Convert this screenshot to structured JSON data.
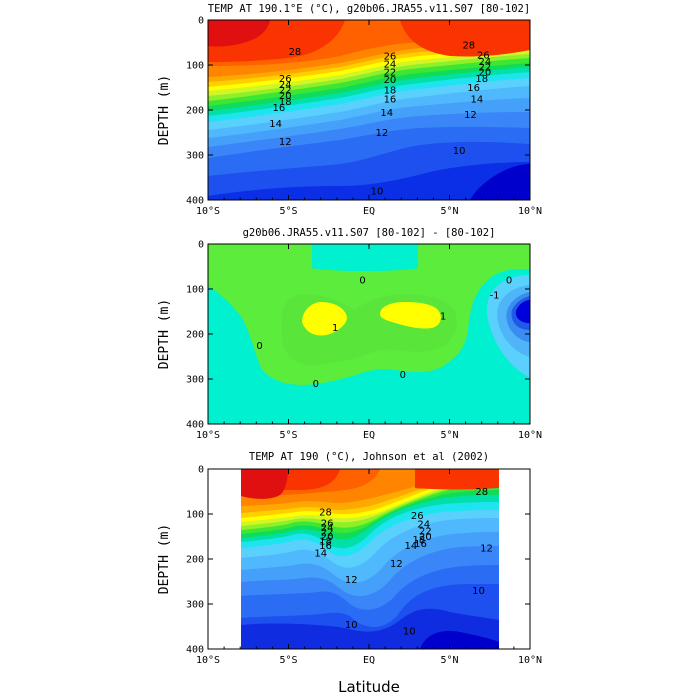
{
  "chart_data": [
    {
      "type": "heatmap",
      "title": "TEMP AT 190.1°E (°C), g20b06.JRA55.v11.S07 [80-102]",
      "xlabel": "",
      "ylabel": "DEPTH (m)",
      "xlim": [
        -10,
        10
      ],
      "ylim": [
        400,
        0
      ],
      "x_ticks": [
        -10,
        -5,
        0,
        5,
        10
      ],
      "x_tick_labels": [
        "10°S",
        "5°S",
        "EQ",
        "5°N",
        "10°N"
      ],
      "y_ticks": [
        0,
        100,
        200,
        300,
        400
      ],
      "y_tick_labels": [
        "0",
        "100",
        "200",
        "300",
        "400"
      ],
      "color_levels": [
        9,
        10,
        11,
        12,
        13,
        14,
        15,
        16,
        17,
        18,
        19,
        20,
        21,
        22,
        23,
        24,
        25,
        26,
        27,
        28,
        29
      ],
      "colors": [
        "#0000cc",
        "#0a2fe6",
        "#1e50f0",
        "#2b6cf5",
        "#3a86f8",
        "#45a0fa",
        "#50b8fc",
        "#5ad0fd",
        "#1ee4f0",
        "#00e0a8",
        "#0fdc5a",
        "#3ce632",
        "#8ef028",
        "#d2f528",
        "#ffff00",
        "#ffd000",
        "#ffa800",
        "#ff8400",
        "#ff6000",
        "#f93400",
        "#e01010"
      ],
      "contour_labels": [
        {
          "value": "28",
          "x": -4.6,
          "y": 70
        },
        {
          "value": "28",
          "x": 6.2,
          "y": 55
        },
        {
          "value": "26",
          "x": -5.2,
          "y": 130
        },
        {
          "value": "24",
          "x": -5.2,
          "y": 143
        },
        {
          "value": "22",
          "x": -5.2,
          "y": 155
        },
        {
          "value": "20",
          "x": -5.2,
          "y": 168
        },
        {
          "value": "18",
          "x": -5.2,
          "y": 181
        },
        {
          "value": "16",
          "x": -5.6,
          "y": 194
        },
        {
          "value": "14",
          "x": -5.8,
          "y": 230
        },
        {
          "value": "12",
          "x": -5.2,
          "y": 270
        },
        {
          "value": "26",
          "x": 1.3,
          "y": 80
        },
        {
          "value": "24",
          "x": 1.3,
          "y": 98
        },
        {
          "value": "22",
          "x": 1.3,
          "y": 115
        },
        {
          "value": "20",
          "x": 1.3,
          "y": 132
        },
        {
          "value": "18",
          "x": 1.3,
          "y": 155
        },
        {
          "value": "16",
          "x": 1.3,
          "y": 175
        },
        {
          "value": "14",
          "x": 1.1,
          "y": 205
        },
        {
          "value": "12",
          "x": 0.8,
          "y": 250
        },
        {
          "value": "26",
          "x": 7.1,
          "y": 78
        },
        {
          "value": "24",
          "x": 7.2,
          "y": 92
        },
        {
          "value": "22",
          "x": 7.2,
          "y": 104
        },
        {
          "value": "20",
          "x": 7.2,
          "y": 116
        },
        {
          "value": "18",
          "x": 7.0,
          "y": 130
        },
        {
          "value": "16",
          "x": 6.5,
          "y": 150
        },
        {
          "value": "14",
          "x": 6.7,
          "y": 175
        },
        {
          "value": "12",
          "x": 6.3,
          "y": 210
        },
        {
          "value": "10",
          "x": 5.6,
          "y": 290
        },
        {
          "value": "10",
          "x": 0.5,
          "y": 380
        }
      ]
    },
    {
      "type": "heatmap",
      "title": "g20b06.JRA55.v11.S07 [80-102] - [80-102]",
      "xlabel": "",
      "ylabel": "DEPTH (m)",
      "xlim": [
        -10,
        10
      ],
      "ylim": [
        400,
        0
      ],
      "x_ticks": [
        -10,
        -5,
        0,
        5,
        10
      ],
      "x_tick_labels": [
        "10°S",
        "5°S",
        "EQ",
        "5°N",
        "10°N"
      ],
      "y_ticks": [
        0,
        100,
        200,
        300,
        400
      ],
      "y_tick_labels": [
        "0",
        "100",
        "200",
        "300",
        "400"
      ],
      "color_levels": [
        -5,
        -4,
        -3,
        -2,
        -1,
        0,
        1,
        2
      ],
      "colors": [
        "#0000d8",
        "#1e5ae8",
        "#3a8cf0",
        "#50b4f8",
        "#5ad0fd",
        "#00f0d0",
        "#5cec3c",
        "#ffff00"
      ],
      "contour_labels": [
        {
          "value": "0",
          "x": -6.8,
          "y": 225
        },
        {
          "value": "0",
          "x": -3.3,
          "y": 310
        },
        {
          "value": "0",
          "x": -0.4,
          "y": 80
        },
        {
          "value": "0",
          "x": 2.1,
          "y": 290
        },
        {
          "value": "0",
          "x": 8.7,
          "y": 80
        },
        {
          "value": "1",
          "x": -2.1,
          "y": 185
        },
        {
          "value": "1",
          "x": 4.6,
          "y": 160
        },
        {
          "value": "-1",
          "x": 7.8,
          "y": 113
        }
      ]
    },
    {
      "type": "heatmap",
      "title": "TEMP AT 190 (°C), Johnson et al (2002)",
      "xlabel": "Latitude",
      "ylabel": "DEPTH (m)",
      "xlim": [
        -10,
        10
      ],
      "ylim": [
        400,
        0
      ],
      "data_extent_x": [
        -8,
        8
      ],
      "x_ticks": [
        -10,
        -5,
        0,
        5,
        10
      ],
      "x_tick_labels": [
        "10°S",
        "5°S",
        "EQ",
        "5°N",
        "10°N"
      ],
      "y_ticks": [
        0,
        100,
        200,
        300,
        400
      ],
      "y_tick_labels": [
        "0",
        "100",
        "200",
        "300",
        "400"
      ],
      "color_levels": [
        9,
        10,
        11,
        12,
        13,
        14,
        15,
        16,
        17,
        18,
        19,
        20,
        21,
        22,
        23,
        24,
        25,
        26,
        27,
        28,
        29
      ],
      "colors": [
        "#0000cc",
        "#0a2fe6",
        "#1e50f0",
        "#2b6cf5",
        "#3a86f8",
        "#45a0fa",
        "#50b8fc",
        "#5ad0fd",
        "#1ee4f0",
        "#00e0a8",
        "#0fdc5a",
        "#3ce632",
        "#8ef028",
        "#d2f528",
        "#ffff00",
        "#ffd000",
        "#ffa800",
        "#ff8400",
        "#ff6000",
        "#f93400",
        "#e01010"
      ],
      "contour_labels": [
        {
          "value": "28",
          "x": 7.0,
          "y": 50
        },
        {
          "value": "28",
          "x": -2.7,
          "y": 95
        },
        {
          "value": "26",
          "x": -2.6,
          "y": 120
        },
        {
          "value": "24",
          "x": -2.6,
          "y": 130
        },
        {
          "value": "22",
          "x": -2.6,
          "y": 140
        },
        {
          "value": "20",
          "x": -2.6,
          "y": 150
        },
        {
          "value": "18",
          "x": -2.7,
          "y": 160
        },
        {
          "value": "16",
          "x": -2.7,
          "y": 170
        },
        {
          "value": "14",
          "x": -3.0,
          "y": 187
        },
        {
          "value": "12",
          "x": -1.1,
          "y": 245
        },
        {
          "value": "26",
          "x": 3.0,
          "y": 103
        },
        {
          "value": "24",
          "x": 3.4,
          "y": 122
        },
        {
          "value": "22",
          "x": 3.5,
          "y": 138
        },
        {
          "value": "20",
          "x": 3.5,
          "y": 150
        },
        {
          "value": "18",
          "x": 3.1,
          "y": 157
        },
        {
          "value": "16",
          "x": 3.2,
          "y": 165
        },
        {
          "value": "14",
          "x": 2.6,
          "y": 170
        },
        {
          "value": "12",
          "x": 1.7,
          "y": 210
        },
        {
          "value": "12",
          "x": 7.3,
          "y": 175
        },
        {
          "value": "10",
          "x": 6.8,
          "y": 270
        },
        {
          "value": "10",
          "x": -1.1,
          "y": 345
        },
        {
          "value": "10",
          "x": 2.5,
          "y": 360
        }
      ]
    }
  ]
}
